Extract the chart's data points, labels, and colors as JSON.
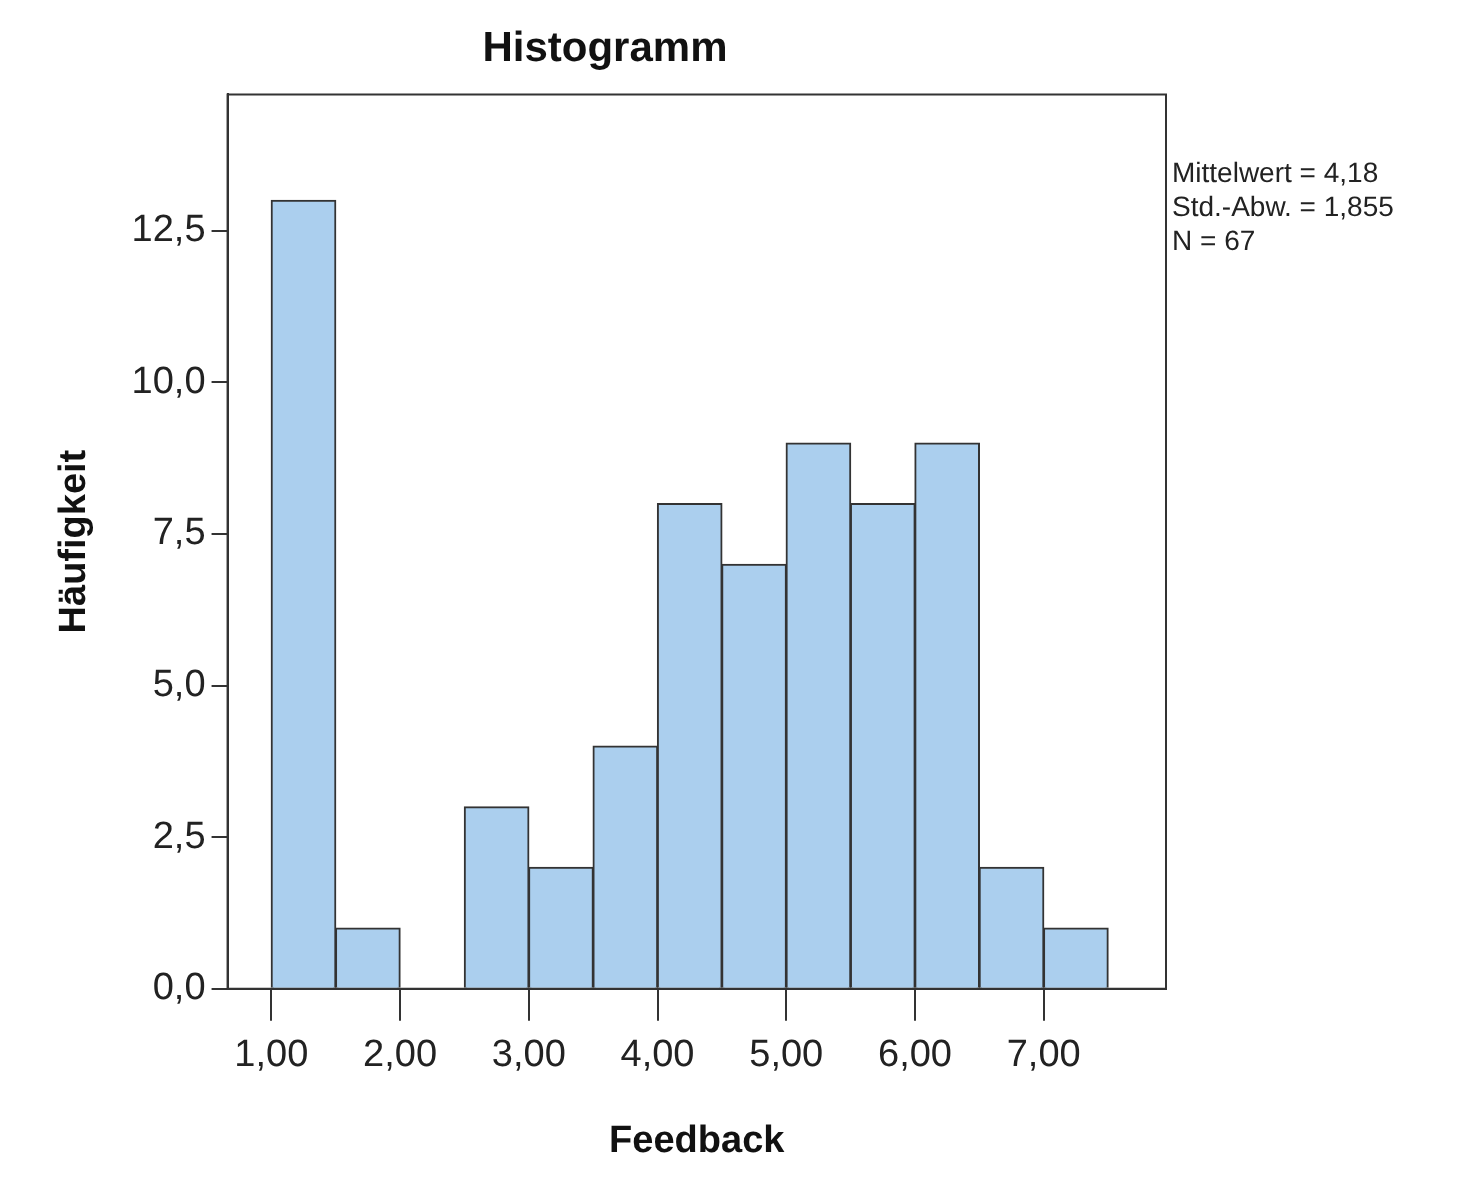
{
  "chart_data": {
    "type": "histogram",
    "title": "Histogramm",
    "xlabel": "Feedback",
    "ylabel": "Häufigkeit",
    "bins": [
      1.0,
      1.5,
      2.0,
      2.5,
      3.0,
      3.5,
      4.0,
      4.5,
      5.0,
      5.5,
      6.0,
      6.5,
      7.0,
      7.5
    ],
    "values": [
      13,
      1,
      0,
      3,
      2,
      4,
      8,
      7,
      9,
      8,
      9,
      2,
      1
    ],
    "color": "#abcfee",
    "xlim": [
      0.66,
      7.95
    ],
    "xticks": [
      {
        "value": 1,
        "label": "1,00"
      },
      {
        "value": 2,
        "label": "2,00"
      },
      {
        "value": 3,
        "label": "3,00"
      },
      {
        "value": 4,
        "label": "4,00"
      },
      {
        "value": 5,
        "label": "5,00"
      },
      {
        "value": 6,
        "label": "6,00"
      },
      {
        "value": 7,
        "label": "7,00"
      }
    ],
    "ylim": [
      0,
      14.75
    ],
    "yticks": [
      {
        "value": 0,
        "label": "0,0"
      },
      {
        "value": 2.5,
        "label": "2,5"
      },
      {
        "value": 5,
        "label": "5,0"
      },
      {
        "value": 7.5,
        "label": "7,5"
      },
      {
        "value": 10,
        "label": "10,0"
      },
      {
        "value": 12.5,
        "label": "12,5"
      }
    ],
    "annotations": [
      "Mittelwert = 4,18",
      "Std.-Abw. = 1,855",
      "N = 67"
    ],
    "grid": false,
    "legend": false
  }
}
